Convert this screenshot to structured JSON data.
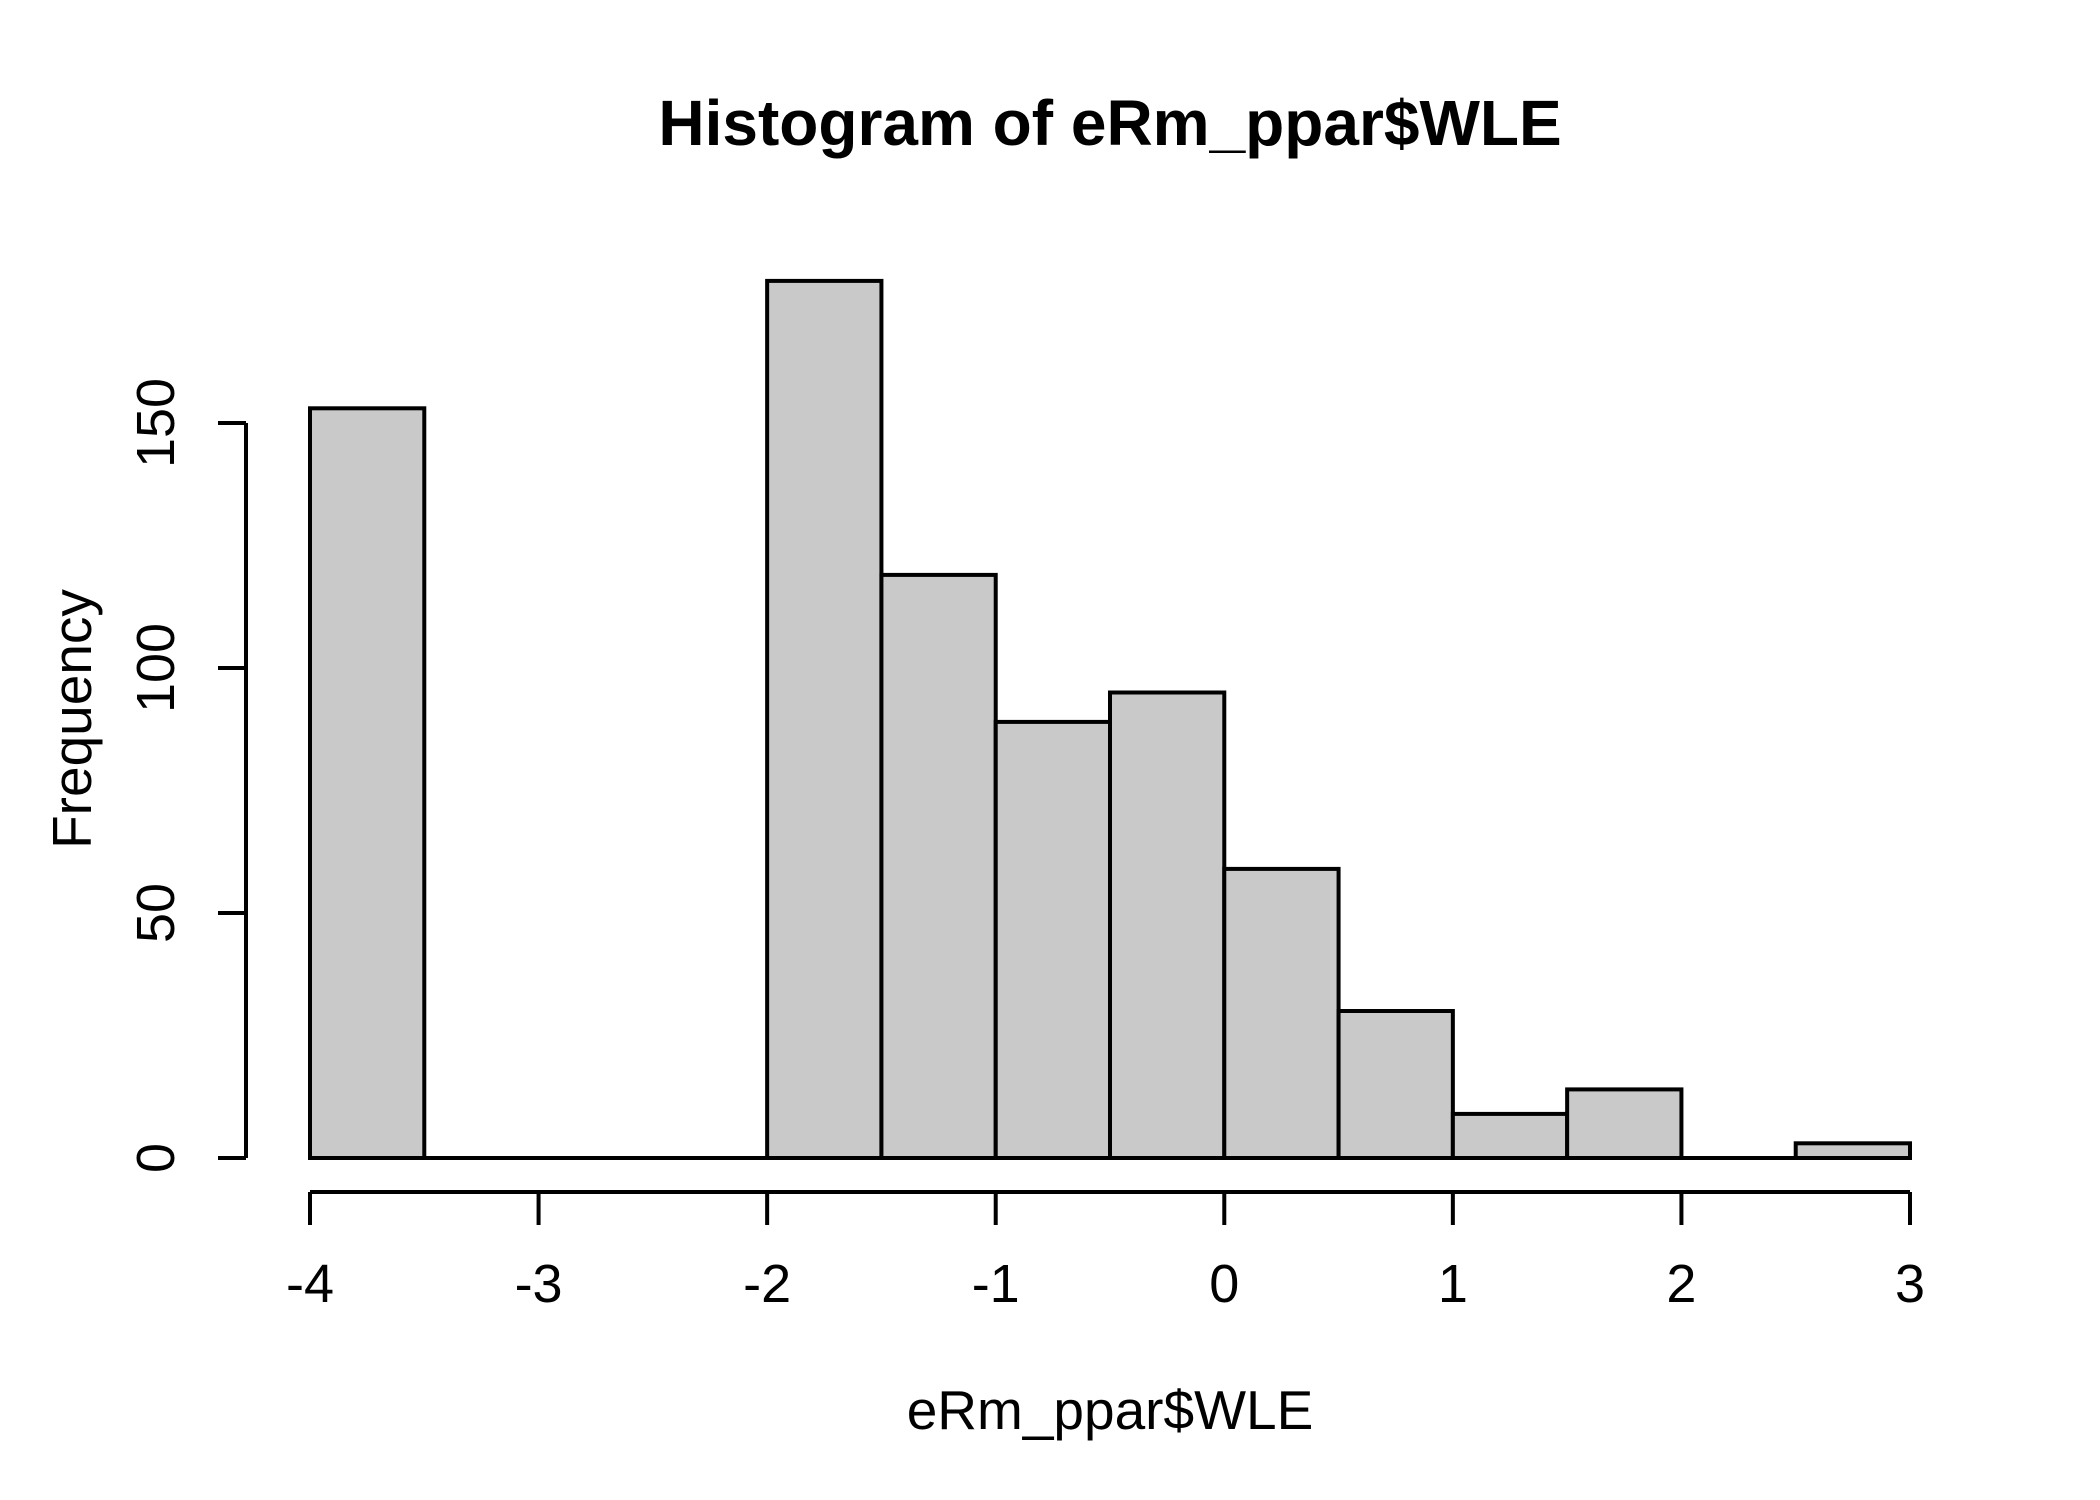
{
  "chart_data": {
    "type": "bar",
    "variant": "histogram",
    "title": "Histogram of eRm_ppar$WLE",
    "xlabel": "eRm_ppar$WLE",
    "ylabel": "Frequency",
    "bin_breaks": [
      -4,
      -3.5,
      -3,
      -2.5,
      -2,
      -1.5,
      -1,
      -0.5,
      0,
      0.5,
      1,
      1.5,
      2,
      2.5,
      3
    ],
    "counts": [
      153,
      0,
      0,
      0,
      179,
      119,
      89,
      95,
      59,
      30,
      9,
      14,
      0,
      3
    ],
    "x_ticks": [
      "-4",
      "-3",
      "-2",
      "-1",
      "0",
      "1",
      "2",
      "3"
    ],
    "x_tick_values": [
      -4,
      -3,
      -2,
      -1,
      0,
      1,
      2,
      3
    ],
    "y_ticks": [
      "0",
      "50",
      "100",
      "150"
    ],
    "y_tick_values": [
      0,
      50,
      100,
      150
    ],
    "xlim": [
      -4,
      3
    ],
    "ylim": [
      0,
      179
    ],
    "grid": false,
    "legend": "none",
    "bar_fill": "#C9C9C9",
    "bar_stroke": "#000000",
    "axis_color": "#000000",
    "text_color": "#000000",
    "background": "#FFFFFF"
  }
}
